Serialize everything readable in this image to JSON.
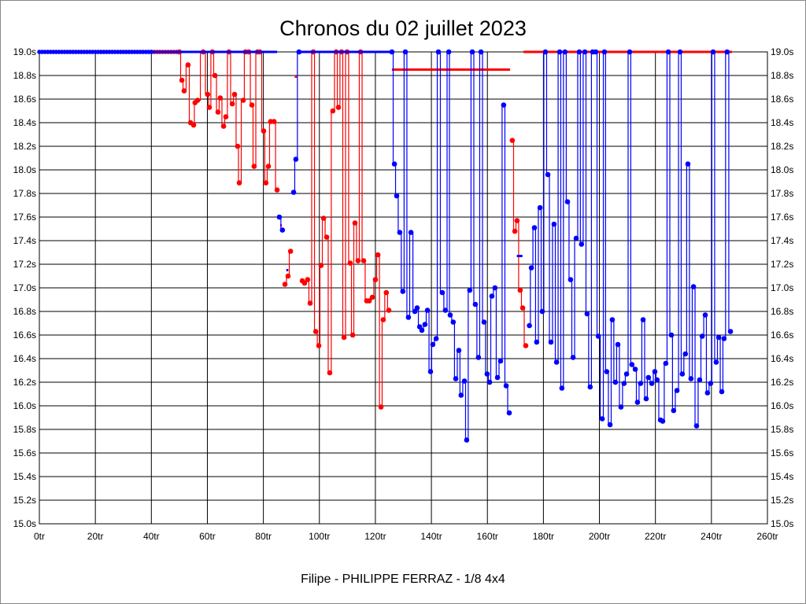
{
  "chart_data": {
    "type": "line",
    "title": "Chronos du 02 juillet 2023",
    "footer": "Filipe - PHILIPPE FERRAZ - 1/8 4x4",
    "xlim": [
      0,
      260
    ],
    "ylim": [
      15.0,
      19.0
    ],
    "x_ticks": [
      "0tr",
      "20tr",
      "40tr",
      "60tr",
      "80tr",
      "100tr",
      "120tr",
      "140tr",
      "160tr",
      "180tr",
      "200tr",
      "220tr",
      "240tr",
      "260tr"
    ],
    "y_ticks": [
      "15.0s",
      "15.2s",
      "15.4s",
      "15.6s",
      "15.8s",
      "16.0s",
      "16.2s",
      "16.4s",
      "16.6s",
      "16.8s",
      "17.0s",
      "17.2s",
      "17.4s",
      "17.6s",
      "17.8s",
      "18.0s",
      "18.2s",
      "18.4s",
      "18.6s",
      "18.8s",
      "19.0s"
    ],
    "grid": true,
    "series": [
      {
        "name": "red",
        "color": "#ff0000",
        "top_markers_range": [
          40,
          50
        ],
        "top_lines": [
          [
            172.9,
            247.3
          ]
        ],
        "dashes": [
          [
            91.2,
            92.0,
            18.79
          ],
          [
            125.9,
            168.1,
            18.85
          ],
          [
            86.0,
            86.6,
            17.53
          ]
        ],
        "segments": [
          [
            [
              50,
              19
            ],
            [
              50.9,
              18.76
            ],
            [
              51.7,
              18.67
            ],
            [
              53.1,
              18.89
            ],
            [
              54.0,
              18.4
            ],
            [
              55.1,
              18.38
            ],
            [
              55.6,
              18.57
            ],
            [
              56.5,
              18.59
            ],
            [
              58.5,
              19
            ],
            [
              60.1,
              18.64
            ],
            [
              60.7,
              18.53
            ],
            [
              61.8,
              19
            ],
            [
              62.7,
              18.8
            ],
            [
              63.8,
              18.49
            ],
            [
              64.6,
              18.61
            ],
            [
              65.8,
              18.37
            ],
            [
              66.6,
              18.45
            ],
            [
              67.7,
              19
            ],
            [
              68.9,
              18.56
            ],
            [
              69.7,
              18.64
            ],
            [
              70.8,
              18.2
            ],
            [
              71.4,
              17.89
            ],
            [
              72.8,
              18.59
            ],
            [
              73.6,
              19
            ],
            [
              74.8,
              19
            ],
            [
              75.9,
              18.55
            ],
            [
              76.7,
              18.03
            ],
            [
              77.9,
              19
            ],
            [
              78.7,
              19
            ],
            [
              80.1,
              18.33
            ],
            [
              80.9,
              17.89
            ],
            [
              81.8,
              18.03
            ],
            [
              82.6,
              18.41
            ],
            [
              83.8,
              18.41
            ],
            [
              84.9,
              17.83
            ]
          ],
          [
            [
              87.7,
              17.03
            ],
            [
              88.8,
              17.1
            ],
            [
              89.7,
              17.31
            ]
          ],
          [
            [
              93.9,
              17.06
            ],
            [
              94.7,
              17.04
            ],
            [
              95.8,
              17.07
            ],
            [
              96.7,
              16.87
            ],
            [
              97.8,
              19
            ],
            [
              98.7,
              16.63
            ],
            [
              99.8,
              16.51
            ],
            [
              100.6,
              17.19
            ],
            [
              101.5,
              17.59
            ],
            [
              102.6,
              17.43
            ],
            [
              103.7,
              16.28
            ],
            [
              104.8,
              18.5
            ],
            [
              106.0,
              19
            ],
            [
              106.8,
              18.53
            ],
            [
              107.9,
              19
            ],
            [
              108.8,
              16.58
            ],
            [
              109.9,
              19
            ],
            [
              111.0,
              17.21
            ],
            [
              111.9,
              16.6
            ],
            [
              112.7,
              17.55
            ],
            [
              113.8,
              17.23
            ],
            [
              114.7,
              19
            ],
            [
              115.8,
              17.23
            ],
            [
              116.9,
              16.89
            ],
            [
              117.8,
              16.89
            ],
            [
              118.9,
              16.92
            ],
            [
              120.0,
              17.07
            ],
            [
              120.9,
              17.28
            ],
            [
              122.0,
              15.99
            ],
            [
              122.8,
              16.73
            ],
            [
              123.9,
              16.96
            ],
            [
              124.8,
              16.81
            ]
          ],
          [
            [
              168.9,
              18.25
            ],
            [
              169.8,
              17.48
            ],
            [
              170.6,
              17.57
            ],
            [
              171.7,
              16.98
            ],
            [
              172.6,
              16.83
            ],
            [
              173.7,
              16.51
            ]
          ]
        ]
      },
      {
        "name": "blue",
        "color": "#0000ff",
        "top_markers_range": [
          0,
          40
        ],
        "top_lines": [
          [
            0,
            84.9
          ],
          [
            92.7,
            125.9
          ]
        ],
        "dashes": [
          [
            88.2,
            88.9,
            17.15
          ],
          [
            170.5,
            172.5,
            17.27
          ]
        ],
        "segments": [
          [
            [
              85.7,
              17.6
            ],
            [
              86.8,
              17.49
            ]
          ],
          [
            [
              90.8,
              17.81
            ],
            [
              91.6,
              18.09
            ],
            [
              92.7,
              19
            ]
          ],
          [
            [
              125.9,
              19
            ],
            [
              126.8,
              18.05
            ],
            [
              127.6,
              17.78
            ],
            [
              128.7,
              17.47
            ],
            [
              129.8,
              16.97
            ],
            [
              130.7,
              19
            ],
            [
              131.8,
              16.75
            ],
            [
              132.7,
              17.47
            ],
            [
              134.1,
              16.8
            ],
            [
              134.9,
              16.83
            ],
            [
              135.8,
              16.67
            ],
            [
              136.6,
              16.64
            ],
            [
              137.7,
              16.69
            ],
            [
              138.6,
              16.81
            ],
            [
              139.7,
              16.29
            ],
            [
              140.5,
              16.52
            ],
            [
              141.7,
              16.57
            ],
            [
              142.5,
              19
            ],
            [
              143.9,
              16.96
            ],
            [
              145.0,
              16.81
            ],
            [
              146.2,
              19
            ],
            [
              146.7,
              16.77
            ],
            [
              147.8,
              16.71
            ],
            [
              148.7,
              16.23
            ],
            [
              149.8,
              16.47
            ],
            [
              150.6,
              16.09
            ],
            [
              151.8,
              16.21
            ],
            [
              152.6,
              15.71
            ],
            [
              153.7,
              16.98
            ],
            [
              154.6,
              19
            ],
            [
              155.7,
              16.86
            ],
            [
              156.8,
              16.41
            ],
            [
              157.7,
              19
            ],
            [
              158.8,
              16.71
            ],
            [
              159.9,
              16.27
            ],
            [
              160.8,
              16.2
            ],
            [
              161.6,
              16.93
            ],
            [
              162.7,
              17.0
            ],
            [
              163.6,
              16.24
            ],
            [
              164.7,
              16.38
            ],
            [
              165.8,
              18.55
            ],
            [
              166.7,
              16.17
            ],
            [
              167.8,
              15.94
            ]
          ],
          [
            [
              175.0,
              16.68
            ],
            [
              175.7,
              17.17
            ],
            [
              176.8,
              17.51
            ],
            [
              177.6,
              16.54
            ],
            [
              178.8,
              17.68
            ],
            [
              179.6,
              16.8
            ],
            [
              180.7,
              19
            ],
            [
              181.6,
              17.96
            ],
            [
              182.7,
              16.54
            ],
            [
              183.8,
              17.54
            ],
            [
              184.7,
              16.37
            ],
            [
              185.8,
              19
            ],
            [
              186.6,
              16.15
            ],
            [
              187.7,
              19
            ],
            [
              188.6,
              17.73
            ],
            [
              189.7,
              17.07
            ],
            [
              190.6,
              16.41
            ],
            [
              191.7,
              17.42
            ],
            [
              192.8,
              19
            ],
            [
              193.6,
              17.37
            ],
            [
              194.8,
              19
            ],
            [
              195.6,
              16.78
            ],
            [
              196.7,
              16.16
            ],
            [
              197.6,
              19
            ],
            [
              198.7,
              19
            ],
            [
              199.6,
              16.59
            ],
            [
              201.0,
              15.89
            ],
            [
              201.8,
              19
            ],
            [
              202.6,
              16.29
            ],
            [
              203.8,
              15.84
            ],
            [
              204.6,
              16.73
            ],
            [
              205.7,
              16.2
            ],
            [
              206.6,
              16.52
            ],
            [
              207.7,
              15.99
            ],
            [
              208.8,
              16.19
            ],
            [
              209.7,
              16.27
            ],
            [
              210.8,
              19
            ],
            [
              211.6,
              16.35
            ],
            [
              212.8,
              16.31
            ],
            [
              213.6,
              16.03
            ],
            [
              214.7,
              16.19
            ],
            [
              215.6,
              16.73
            ],
            [
              216.7,
              16.06
            ],
            [
              217.5,
              16.24
            ],
            [
              218.7,
              16.19
            ],
            [
              219.8,
              16.29
            ],
            [
              220.6,
              16.22
            ],
            [
              221.8,
              15.88
            ],
            [
              222.6,
              15.87
            ],
            [
              223.7,
              16.36
            ],
            [
              224.6,
              19
            ],
            [
              225.7,
              16.6
            ],
            [
              226.5,
              15.96
            ],
            [
              227.7,
              16.13
            ],
            [
              228.8,
              19
            ],
            [
              229.6,
              16.27
            ],
            [
              230.7,
              16.44
            ],
            [
              231.6,
              18.05
            ],
            [
              232.7,
              16.23
            ],
            [
              233.6,
              17.01
            ],
            [
              234.7,
              15.83
            ],
            [
              235.8,
              16.22
            ],
            [
              236.7,
              16.59
            ],
            [
              237.8,
              16.77
            ],
            [
              238.6,
              16.11
            ],
            [
              239.7,
              16.19
            ],
            [
              240.6,
              19
            ],
            [
              241.7,
              16.37
            ],
            [
              242.6,
              16.58
            ],
            [
              243.7,
              16.12
            ],
            [
              244.5,
              16.57
            ],
            [
              245.6,
              19
            ],
            [
              246.8,
              16.63
            ]
          ]
        ]
      }
    ]
  }
}
